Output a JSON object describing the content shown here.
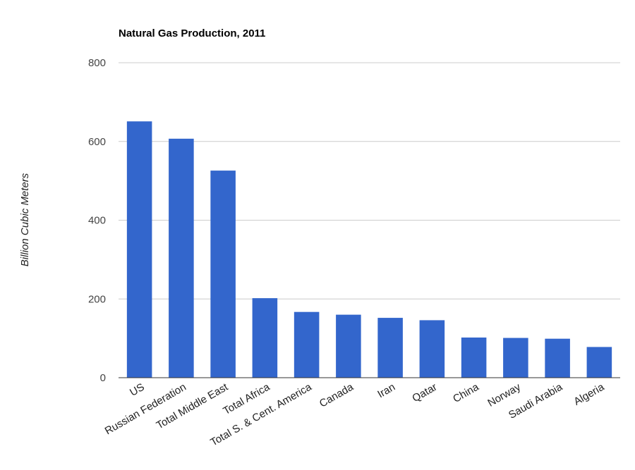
{
  "chart_data": {
    "type": "bar",
    "title": "Natural Gas Production, 2011",
    "xlabel": "",
    "ylabel": "Billion Cubic Meters",
    "ylim": [
      0,
      800
    ],
    "yticks": [
      0,
      200,
      400,
      600,
      800
    ],
    "grid": true,
    "bar_color": "#3366cc",
    "categories": [
      "US",
      "Russian Federation",
      "Total Middle East",
      "Total Africa",
      "Total S. & Cent. America",
      "Canada",
      "Iran",
      "Qatar",
      "China",
      "Norway",
      "Saudi Arabia",
      "Algeria"
    ],
    "values": [
      651,
      607,
      526,
      202,
      167,
      160,
      152,
      146,
      102,
      101,
      99,
      78
    ]
  }
}
